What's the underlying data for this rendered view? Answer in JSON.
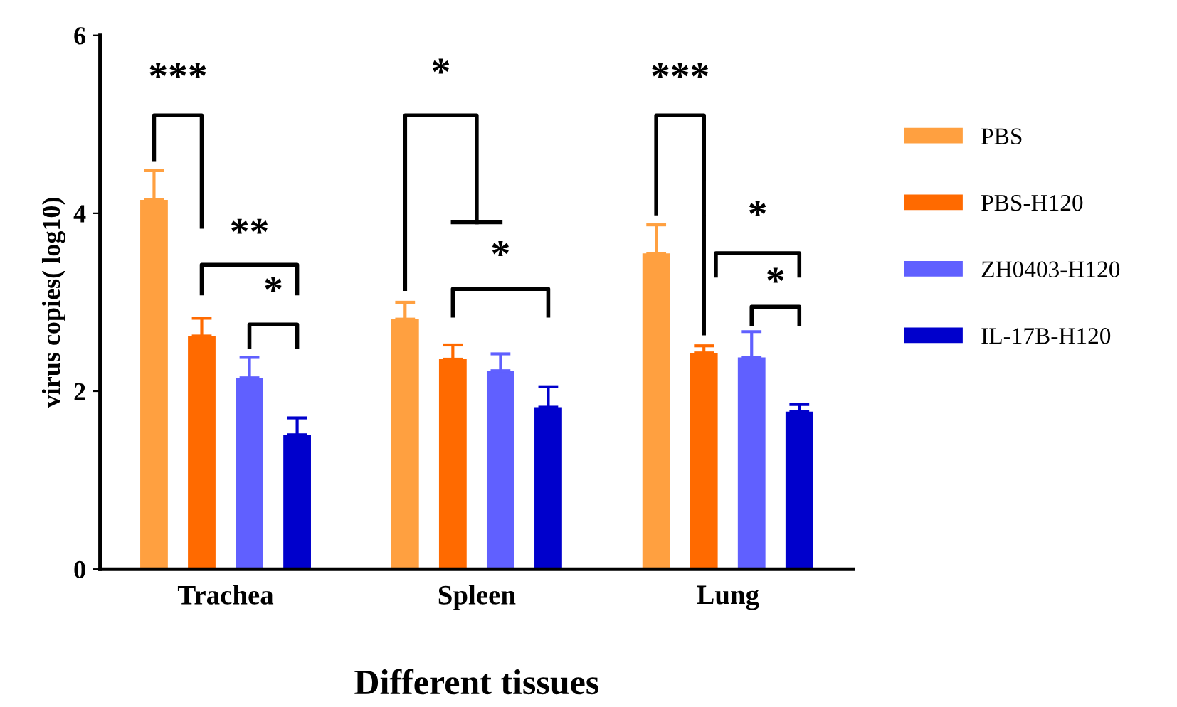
{
  "chart_data": {
    "type": "bar",
    "xlabel": "Different tissues",
    "ylabel": "virus copies( log10)",
    "categories": [
      "Trachea",
      "Spleen",
      "Lung"
    ],
    "series": [
      {
        "name": "PBS",
        "color": "#ffa040",
        "values": [
          4.15,
          2.81,
          3.55
        ],
        "errors": [
          [
            4.15,
            4.48
          ],
          [
            2.81,
            3.0
          ],
          [
            3.55,
            3.87
          ]
        ]
      },
      {
        "name": "PBS-H120",
        "color": "#ff6a00",
        "values": [
          2.62,
          2.36,
          2.43
        ],
        "errors": [
          [
            2.62,
            2.82
          ],
          [
            2.36,
            2.52
          ],
          [
            2.43,
            2.51
          ]
        ]
      },
      {
        "name": "ZH0403-H120",
        "color": "#6060ff",
        "values": [
          2.15,
          2.23,
          2.38
        ],
        "errors": [
          [
            2.15,
            2.38
          ],
          [
            2.23,
            2.42
          ],
          [
            2.38,
            2.67
          ]
        ]
      },
      {
        "name": "IL-17B-H120",
        "color": "#0000cc",
        "values": [
          1.51,
          1.82,
          1.77
        ],
        "errors": [
          [
            1.51,
            1.7
          ],
          [
            1.82,
            2.05
          ],
          [
            1.77,
            1.85
          ]
        ]
      }
    ],
    "ylim": [
      0,
      6
    ],
    "yticks": [
      0,
      2,
      4,
      6
    ],
    "grid": false,
    "legend": "right",
    "annotations": [
      "***",
      "**",
      "*",
      "*",
      "*",
      "***",
      "*",
      "*"
    ]
  }
}
